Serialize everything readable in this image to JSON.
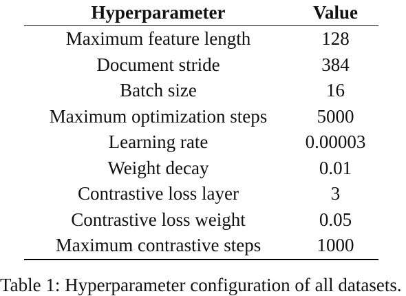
{
  "table": {
    "headers": [
      "Hyperparameter",
      "Value"
    ],
    "rows": [
      {
        "name": "Maximum feature length",
        "value": "128"
      },
      {
        "name": "Document stride",
        "value": "384"
      },
      {
        "name": "Batch size",
        "value": "16"
      },
      {
        "name": "Maximum optimization steps",
        "value": "5000"
      },
      {
        "name": "Learning rate",
        "value": "0.00003"
      },
      {
        "name": "Weight decay",
        "value": "0.01"
      },
      {
        "name": "Contrastive loss layer",
        "value": "3"
      },
      {
        "name": "Contrastive loss weight",
        "value": "0.05"
      },
      {
        "name": "Maximum contrastive steps",
        "value": "1000"
      }
    ]
  },
  "caption": "Table 1: Hyperparameter configuration of all datasets."
}
